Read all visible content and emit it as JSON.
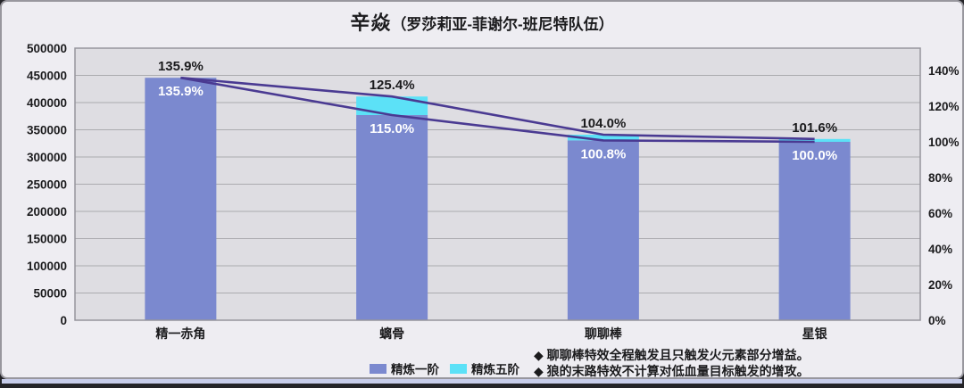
{
  "title": {
    "main": "辛焱",
    "sub": "（罗莎莉亚-菲谢尔-班尼特队伍）"
  },
  "legend": {
    "items": [
      {
        "label": "精炼一阶",
        "color": "#7b89cf"
      },
      {
        "label": "精炼五阶",
        "color": "#5ce1f7"
      }
    ]
  },
  "footnotes": [
    "◆ 聊聊棒特效全程触发且只触发火元素部分增益。",
    "◆ 狼的末路特效不计算对低血量目标触发的增攻。"
  ],
  "chart_data": {
    "type": "bar",
    "subtype": "stacked-bar-with-line-overlay",
    "title": "辛焱（罗莎莉亚-菲谢尔-班尼特队伍）",
    "categories": [
      "精一赤角",
      "螭骨",
      "聊聊棒",
      "星银"
    ],
    "series": [
      {
        "name": "精炼一阶",
        "pct_values": [
          135.9,
          115.0,
          100.8,
          100.0
        ],
        "est_values_left_axis": [
          443000,
          375000,
          329000,
          326000
        ],
        "color": "#7b89cf",
        "label_color": "#ffffff"
      },
      {
        "name": "精炼五阶",
        "pct_values": [
          135.9,
          125.4,
          104.0,
          101.6
        ],
        "est_values_left_axis": [
          443000,
          409000,
          339000,
          331000
        ],
        "color": "#5ce1f7",
        "label_color": "#1b1b1d"
      }
    ],
    "line_color": "#4a3a92",
    "left_axis": {
      "min": 0,
      "max": 500000,
      "step": 50000,
      "tick_labels": [
        "500000",
        "450000",
        "400000",
        "350000",
        "300000",
        "250000",
        "200000",
        "150000",
        "100000",
        "50000",
        "0"
      ]
    },
    "right_axis": {
      "min_pct": 0,
      "tick_step_pct": 20,
      "max_tick_pct": 140,
      "tick_labels": [
        "140%",
        "120%",
        "100%",
        "80%",
        "60%",
        "40%",
        "20%",
        "0%"
      ]
    },
    "grid": "horizontal-only",
    "legend_position": "bottom-center",
    "colors": {
      "plot_bg": "#dedde2",
      "gridline": "#ababaf",
      "frame": "#96959c",
      "card_bg": "#eeedf2",
      "text": "#1b1b1d"
    }
  }
}
